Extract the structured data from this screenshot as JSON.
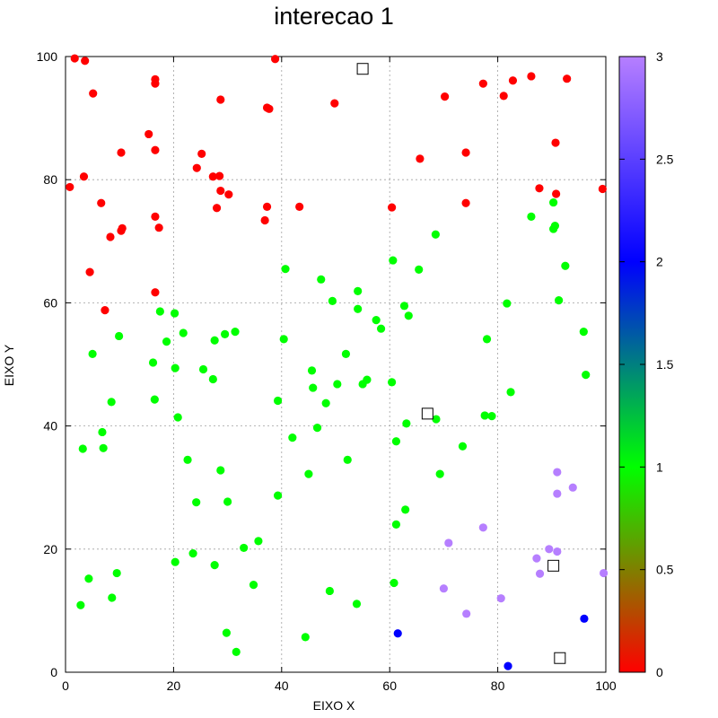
{
  "chart_data": {
    "type": "scatter",
    "title": "interecao 1",
    "xlabel": "EIXO X",
    "ylabel": "EIXO Y",
    "xlim": [
      0,
      100
    ],
    "ylim": [
      0,
      100
    ],
    "x_ticks": [
      "0",
      "20",
      "40",
      "60",
      "80",
      "100"
    ],
    "y_ticks": [
      "0",
      "20",
      "40",
      "60",
      "80",
      "100"
    ],
    "grid": true,
    "colorbar": {
      "range": [
        0,
        3
      ],
      "ticks": [
        "0",
        "0.5",
        "1",
        "1.5",
        "2",
        "2.5",
        "3"
      ],
      "stops": [
        {
          "value": 0,
          "color": "#ff0000"
        },
        {
          "value": 1,
          "color": "#00ff00"
        },
        {
          "value": 2,
          "color": "#0000ff"
        },
        {
          "value": 3,
          "color": "#b67fff"
        }
      ]
    },
    "series": [
      {
        "cluster": 0,
        "color": "#ff0000",
        "points": [
          [
            1.7,
            99.7
          ],
          [
            3.6,
            99.3
          ],
          [
            5.1,
            94.0
          ],
          [
            0.8,
            78.8
          ],
          [
            3.4,
            80.5
          ],
          [
            6.6,
            76.2
          ],
          [
            10.3,
            84.4
          ],
          [
            10.3,
            71.7
          ],
          [
            10.5,
            72.1
          ],
          [
            8.3,
            70.7
          ],
          [
            4.5,
            65.0
          ],
          [
            7.3,
            58.8
          ],
          [
            15.4,
            87.4
          ],
          [
            16.6,
            95.6
          ],
          [
            16.6,
            96.3
          ],
          [
            16.6,
            84.8
          ],
          [
            16.6,
            74.0
          ],
          [
            17.3,
            72.2
          ],
          [
            16.6,
            61.7
          ],
          [
            24.3,
            81.9
          ],
          [
            25.2,
            84.2
          ],
          [
            27.3,
            80.5
          ],
          [
            28.5,
            80.6
          ],
          [
            28.7,
            93.0
          ],
          [
            28.0,
            75.4
          ],
          [
            28.7,
            78.2
          ],
          [
            30.2,
            77.6
          ],
          [
            36.9,
            73.4
          ],
          [
            37.3,
            75.6
          ],
          [
            37.3,
            91.7
          ],
          [
            37.7,
            91.5
          ],
          [
            38.8,
            99.6
          ],
          [
            43.3,
            75.6
          ],
          [
            49.8,
            92.4
          ],
          [
            60.4,
            75.5
          ],
          [
            65.6,
            83.4
          ],
          [
            70.2,
            93.5
          ],
          [
            74.1,
            84.4
          ],
          [
            74.1,
            76.2
          ],
          [
            77.3,
            95.6
          ],
          [
            81.1,
            93.6
          ],
          [
            82.8,
            96.1
          ],
          [
            86.2,
            96.8
          ],
          [
            87.7,
            78.6
          ],
          [
            90.7,
            86.0
          ],
          [
            90.8,
            77.7
          ],
          [
            92.8,
            96.4
          ],
          [
            99.4,
            78.5
          ]
        ]
      },
      {
        "cluster": 1,
        "color": "#00ff00",
        "points": [
          [
            3.2,
            36.3
          ],
          [
            2.8,
            10.9
          ],
          [
            4.3,
            15.2
          ],
          [
            5.0,
            51.7
          ],
          [
            6.8,
            39.0
          ],
          [
            7.0,
            36.4
          ],
          [
            8.5,
            43.9
          ],
          [
            8.6,
            12.1
          ],
          [
            9.5,
            16.1
          ],
          [
            9.9,
            54.6
          ],
          [
            16.2,
            50.3
          ],
          [
            16.5,
            44.3
          ],
          [
            17.5,
            58.6
          ],
          [
            18.7,
            53.7
          ],
          [
            20.2,
            58.3
          ],
          [
            20.3,
            49.4
          ],
          [
            20.3,
            17.9
          ],
          [
            20.8,
            41.4
          ],
          [
            21.8,
            55.1
          ],
          [
            22.6,
            34.5
          ],
          [
            23.6,
            19.3
          ],
          [
            24.2,
            27.6
          ],
          [
            25.5,
            49.2
          ],
          [
            27.3,
            47.6
          ],
          [
            27.6,
            53.9
          ],
          [
            27.6,
            17.4
          ],
          [
            28.7,
            32.8
          ],
          [
            29.5,
            54.9
          ],
          [
            30.0,
            27.7
          ],
          [
            29.8,
            6.4
          ],
          [
            31.4,
            55.3
          ],
          [
            31.6,
            3.3
          ],
          [
            33.0,
            20.2
          ],
          [
            34.8,
            14.2
          ],
          [
            35.7,
            21.3
          ],
          [
            39.3,
            44.1
          ],
          [
            39.3,
            28.7
          ],
          [
            40.4,
            54.1
          ],
          [
            40.7,
            65.5
          ],
          [
            42.0,
            38.1
          ],
          [
            44.4,
            5.7
          ],
          [
            45.0,
            32.2
          ],
          [
            45.6,
            49.0
          ],
          [
            45.8,
            46.2
          ],
          [
            46.6,
            39.7
          ],
          [
            47.3,
            63.8
          ],
          [
            48.2,
            43.7
          ],
          [
            48.9,
            13.2
          ],
          [
            49.4,
            60.3
          ],
          [
            50.3,
            46.8
          ],
          [
            51.9,
            51.7
          ],
          [
            52.2,
            34.5
          ],
          [
            54.1,
            61.9
          ],
          [
            54.1,
            59.0
          ],
          [
            53.9,
            11.1
          ],
          [
            55.0,
            46.8
          ],
          [
            55.8,
            47.5
          ],
          [
            57.5,
            57.2
          ],
          [
            58.4,
            55.8
          ],
          [
            60.4,
            47.1
          ],
          [
            60.6,
            66.9
          ],
          [
            60.8,
            14.5
          ],
          [
            61.2,
            37.5
          ],
          [
            61.2,
            24.0
          ],
          [
            62.7,
            59.5
          ],
          [
            62.9,
            26.4
          ],
          [
            63.1,
            40.4
          ],
          [
            63.5,
            57.9
          ],
          [
            65.4,
            65.4
          ],
          [
            68.5,
            71.1
          ],
          [
            68.6,
            41.1
          ],
          [
            69.3,
            32.2
          ],
          [
            73.5,
            36.7
          ],
          [
            77.6,
            41.7
          ],
          [
            78.0,
            54.1
          ],
          [
            78.9,
            41.6
          ],
          [
            81.7,
            59.9
          ],
          [
            82.4,
            45.5
          ],
          [
            86.2,
            74.0
          ],
          [
            90.3,
            72.0
          ],
          [
            90.3,
            76.3
          ],
          [
            90.6,
            72.5
          ],
          [
            91.3,
            60.4
          ],
          [
            92.5,
            66.0
          ],
          [
            95.9,
            55.3
          ],
          [
            96.3,
            48.3
          ]
        ]
      },
      {
        "cluster": 2,
        "color": "#0000ff",
        "points": [
          [
            61.5,
            6.3
          ],
          [
            81.9,
            1.0
          ],
          [
            96.0,
            8.7
          ]
        ]
      },
      {
        "cluster": 3,
        "color": "#b67fff",
        "points": [
          [
            70.9,
            21.0
          ],
          [
            70.0,
            13.6
          ],
          [
            74.2,
            9.5
          ],
          [
            77.3,
            23.5
          ],
          [
            80.6,
            12.0
          ],
          [
            87.2,
            18.5
          ],
          [
            87.8,
            16.0
          ],
          [
            89.5,
            20.0
          ],
          [
            91.0,
            32.5
          ],
          [
            91.0,
            29.0
          ],
          [
            91.0,
            19.6
          ],
          [
            93.9,
            30.0
          ],
          [
            99.6,
            16.1
          ]
        ]
      }
    ],
    "centroids": [
      [
        55.0,
        98.0
      ],
      [
        67.0,
        42.0
      ],
      [
        90.3,
        17.3
      ],
      [
        91.5,
        2.3
      ]
    ]
  }
}
